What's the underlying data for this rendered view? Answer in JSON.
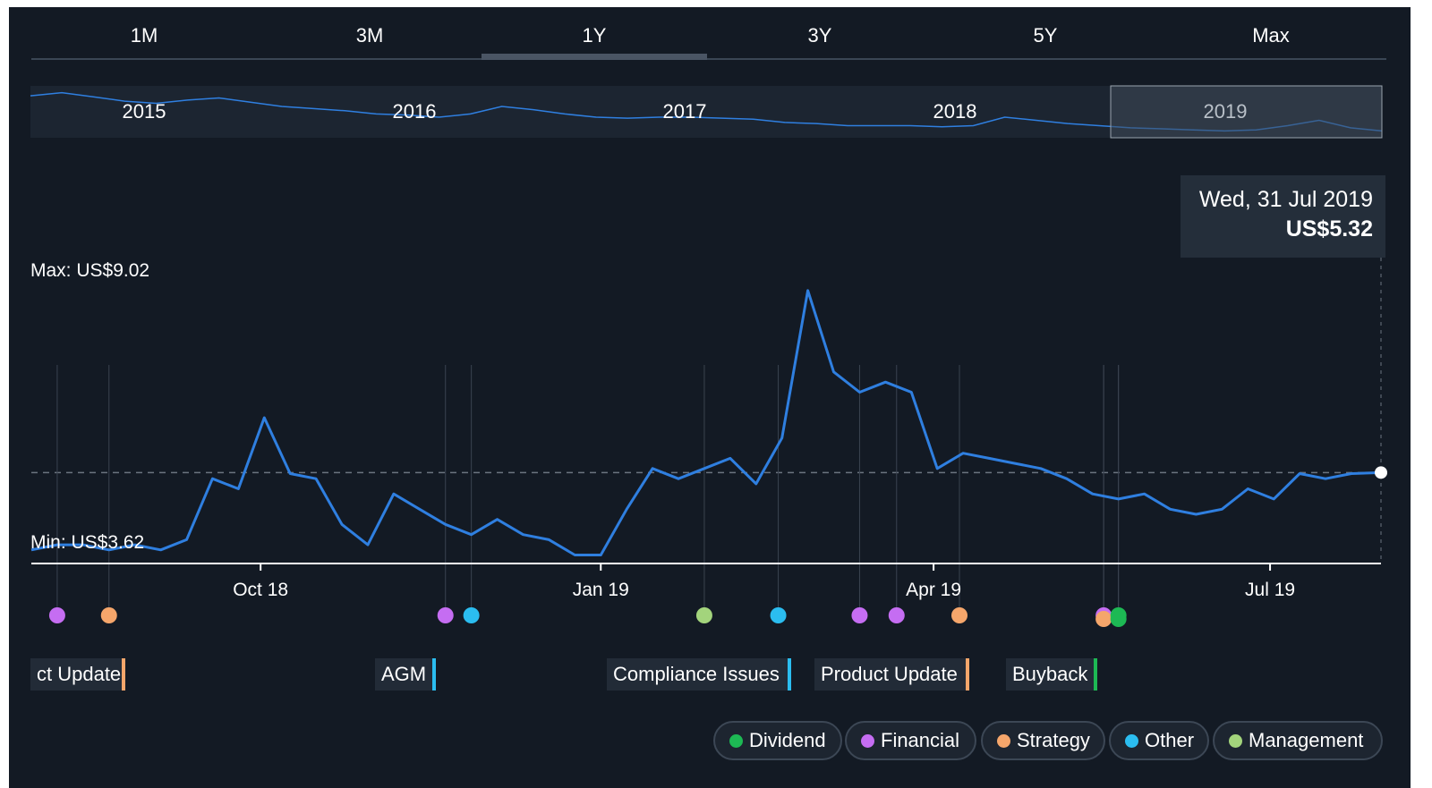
{
  "tabs": [
    {
      "label": "1M",
      "active": false
    },
    {
      "label": "3M",
      "active": false
    },
    {
      "label": "1Y",
      "active": true
    },
    {
      "label": "3Y",
      "active": false
    },
    {
      "label": "5Y",
      "active": false
    },
    {
      "label": "Max",
      "active": false
    }
  ],
  "navigator": {
    "years": [
      "2015",
      "2016",
      "2017",
      "2018",
      "2019"
    ],
    "selected_year": "2019",
    "series": [
      8.6,
      8.9,
      8.5,
      8.1,
      7.9,
      8.2,
      8.4,
      8.0,
      7.6,
      7.4,
      7.2,
      6.9,
      6.8,
      6.6,
      6.9,
      7.6,
      7.3,
      6.9,
      6.6,
      6.5,
      6.6,
      6.6,
      6.5,
      6.4,
      6.1,
      6.0,
      5.8,
      5.8,
      5.8,
      5.7,
      5.8,
      6.6,
      6.3,
      6.0,
      5.8,
      5.6,
      5.5,
      5.4,
      5.3,
      5.4,
      5.8,
      6.3,
      5.6,
      5.3
    ],
    "colors": {
      "line": "#2f7fe0",
      "background": "#1c2531",
      "selection": "#3f4a57"
    }
  },
  "tooltip": {
    "date": "Wed, 31 Jul 2019",
    "price": "US$5.32"
  },
  "range": {
    "max_label": "Max: US$9.02",
    "min_label": "Min: US$3.62",
    "max": 9.02,
    "min": 3.62
  },
  "chart_data": {
    "type": "line",
    "x_ticks": [
      "Oct 18",
      "Jan 19",
      "Apr 19",
      "Jul 19"
    ],
    "x_tick_dates": [
      "2018-10-01",
      "2019-01-01",
      "2019-04-01",
      "2019-07-01"
    ],
    "x_range": [
      "2018-07-31",
      "2019-07-31"
    ],
    "y_range": [
      3.62,
      9.02
    ],
    "reference_line": 5.32,
    "grid": false,
    "line_color": "#2f7fe0",
    "x": [
      "2018-07-31",
      "2018-08-07",
      "2018-08-14",
      "2018-08-21",
      "2018-08-28",
      "2018-09-04",
      "2018-09-11",
      "2018-09-18",
      "2018-09-25",
      "2018-10-02",
      "2018-10-09",
      "2018-10-16",
      "2018-10-23",
      "2018-10-30",
      "2018-11-06",
      "2018-11-13",
      "2018-11-20",
      "2018-11-27",
      "2018-12-04",
      "2018-12-11",
      "2018-12-18",
      "2018-12-25",
      "2019-01-01",
      "2019-01-08",
      "2019-01-15",
      "2019-01-22",
      "2019-01-29",
      "2019-02-05",
      "2019-02-12",
      "2019-02-19",
      "2019-02-26",
      "2019-03-05",
      "2019-03-12",
      "2019-03-19",
      "2019-03-26",
      "2019-04-02",
      "2019-04-09",
      "2019-04-16",
      "2019-04-23",
      "2019-04-30",
      "2019-05-07",
      "2019-05-14",
      "2019-05-21",
      "2019-05-28",
      "2019-06-04",
      "2019-06-11",
      "2019-06-18",
      "2019-06-25",
      "2019-07-02",
      "2019-07-09",
      "2019-07-16",
      "2019-07-23",
      "2019-07-31"
    ],
    "y": [
      3.8,
      3.9,
      3.9,
      3.8,
      3.9,
      3.8,
      4.0,
      5.2,
      5.0,
      6.4,
      5.3,
      5.2,
      4.3,
      3.9,
      4.9,
      4.6,
      4.3,
      4.1,
      4.4,
      4.1,
      4.0,
      3.7,
      3.7,
      4.6,
      5.4,
      5.2,
      5.4,
      5.6,
      5.1,
      6.0,
      8.9,
      7.3,
      6.9,
      7.1,
      6.9,
      5.4,
      5.7,
      5.6,
      5.5,
      5.4,
      5.2,
      4.9,
      4.8,
      4.9,
      4.6,
      4.5,
      4.6,
      5.0,
      4.8,
      5.3,
      5.2,
      5.3,
      5.32
    ]
  },
  "events": [
    {
      "date": "2018-08-07",
      "category": "financial"
    },
    {
      "date": "2018-08-21",
      "category": "strategy"
    },
    {
      "date": "2018-11-20",
      "category": "financial"
    },
    {
      "date": "2018-11-27",
      "category": "other"
    },
    {
      "date": "2019-01-29",
      "category": "management"
    },
    {
      "date": "2019-02-18",
      "category": "other"
    },
    {
      "date": "2019-03-12",
      "category": "financial"
    },
    {
      "date": "2019-03-22",
      "category": "financial"
    },
    {
      "date": "2019-04-08",
      "category": "strategy"
    },
    {
      "date": "2019-05-17",
      "category": "financial"
    },
    {
      "date": "2019-05-17",
      "category": "strategy"
    },
    {
      "date": "2019-05-21",
      "category": "dividend"
    },
    {
      "date": "2019-05-21",
      "category": "dividend"
    }
  ],
  "event_labels": [
    {
      "text": "ct Update",
      "category": "strategy"
    },
    {
      "text": "AGM",
      "category": "other"
    },
    {
      "text": "Compliance Issues",
      "category": "other"
    },
    {
      "text": "Product Update",
      "category": "strategy"
    },
    {
      "text": "Buyback",
      "category": "dividend"
    }
  ],
  "legend": [
    {
      "label": "Dividend",
      "key": "dividend"
    },
    {
      "label": "Financial",
      "key": "financial"
    },
    {
      "label": "Strategy",
      "key": "strategy"
    },
    {
      "label": "Other",
      "key": "other"
    },
    {
      "label": "Management",
      "key": "management"
    }
  ],
  "category_colors": {
    "dividend": "#1db954",
    "financial": "#c56df2",
    "strategy": "#f5a66b",
    "other": "#2bbdf0",
    "management": "#a3d47c"
  }
}
